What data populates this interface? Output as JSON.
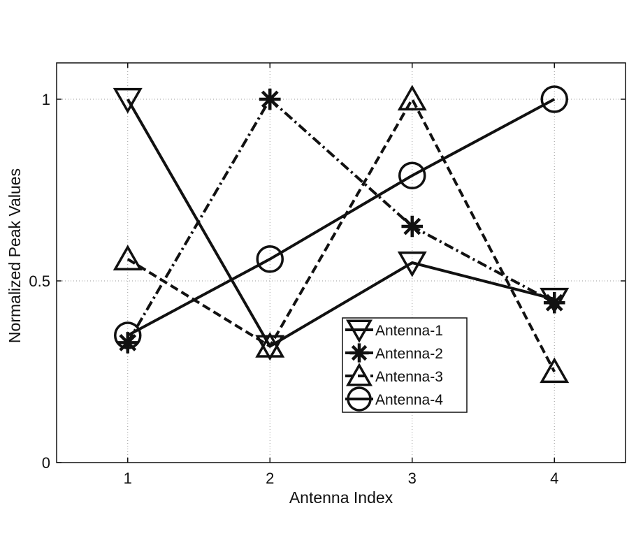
{
  "chart_data": {
    "type": "line",
    "title": "",
    "xlabel": "Antenna Index",
    "ylabel": "Normalized Peak Values",
    "x": [
      1,
      2,
      3,
      4
    ],
    "xlim": [
      0.5,
      4.5
    ],
    "ylim": [
      0,
      1.1
    ],
    "xticks": [
      1,
      2,
      3,
      4
    ],
    "xtick_labels": [
      "1",
      "2",
      "3",
      "4"
    ],
    "yticks": [
      0,
      0.5,
      1
    ],
    "ytick_labels": [
      "0",
      "0.5",
      "1"
    ],
    "grid": true,
    "legend_position": "inside-center-right",
    "series": [
      {
        "name": "Antenna-1",
        "values": [
          1.0,
          0.32,
          0.55,
          0.45
        ],
        "marker": "triangle-down",
        "line_style": "solid"
      },
      {
        "name": "Antenna-2",
        "values": [
          0.33,
          1.0,
          0.65,
          0.44
        ],
        "marker": "asterisk",
        "line_style": "dash-dot"
      },
      {
        "name": "Antenna-3",
        "values": [
          0.56,
          0.32,
          1.0,
          0.25
        ],
        "marker": "triangle-up",
        "line_style": "dashed"
      },
      {
        "name": "Antenna-4",
        "values": [
          0.35,
          0.56,
          0.79,
          1.0
        ],
        "marker": "circle",
        "line_style": "solid"
      }
    ]
  },
  "colors": {
    "line": "#111111",
    "grid": "#9a9a9a",
    "background": "#ffffff"
  }
}
